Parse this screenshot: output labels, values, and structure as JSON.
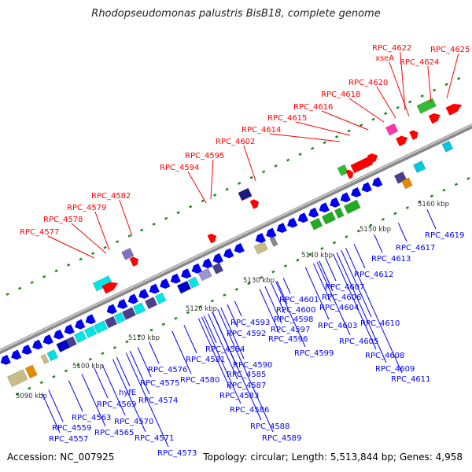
{
  "title": "Rhodopseudomonas palustris BisB18, complete genome",
  "footer": {
    "accession": "Accession: NC_007925",
    "summary": "Topology: circular; Length: 5,513,844 bp; Genes: 4,958"
  },
  "colors": {
    "outer_label": "#ff0000",
    "inner_label": "#0000ff",
    "track": "#999999",
    "tick": "#1a8a1a"
  },
  "scale_labels": [
    "5090 kbp",
    "5100 kbp",
    "5110 kbp",
    "5120 kbp",
    "5130 kbp",
    "5140 kbp",
    "5150 kbp",
    "5160 kbp"
  ],
  "outer_genes": [
    "RPC_4622",
    "xseA",
    "RPC_4624",
    "RPC_4625",
    "RPC_4620",
    "RPC_4618",
    "RPC_4616",
    "RPC_4615",
    "RPC_4614",
    "RPC_4602",
    "RPC_4595",
    "RPC_4594",
    "RPC_4582",
    "RPC_4579",
    "RPC_4578",
    "RPC_4577"
  ],
  "inner_genes": [
    "RPC_4619",
    "RPC_4617",
    "RPC_4613",
    "RPC_4612",
    "RPC_4607",
    "RPC_4606",
    "RPC_4604",
    "RPC_4610",
    "RPC_4603",
    "RPC_4605",
    "RPC_4608",
    "RPC_4609",
    "RPC_4611",
    "RPC_4601",
    "RPC_4600",
    "RPC_4598",
    "RPC_4597",
    "RPC_4596",
    "RPC_4599",
    "RPC_4593",
    "RPC_4592",
    "RPC_4584",
    "RPC_4590",
    "RPC_4585",
    "RPC_4581",
    "RPC_4587",
    "RPC_4583",
    "RPC_4586",
    "RPC_4588",
    "RPC_4589",
    "RPC_4576",
    "RPC_4575",
    "RPC_4580",
    "RPC_4574",
    "hyfE",
    "RPC_4569",
    "RPC_4563",
    "RPC_4570",
    "RPC_4559",
    "RPC_4565",
    "RPC_4571",
    "RPC_4557",
    "RPC_4573"
  ]
}
